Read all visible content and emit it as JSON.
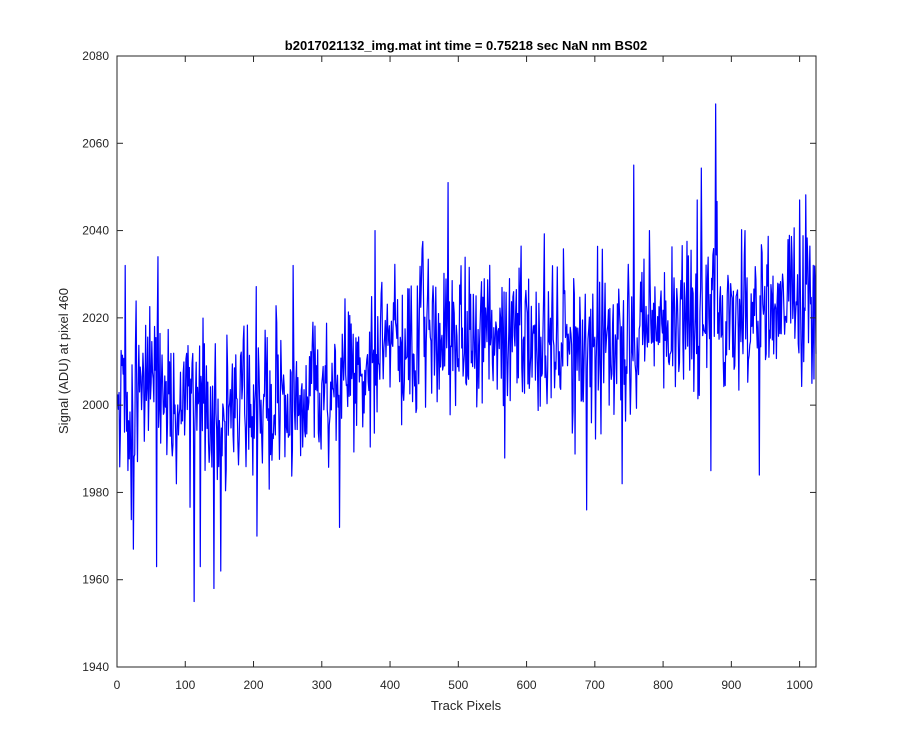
{
  "chart_data": {
    "type": "line",
    "title": "b2017021132_img.mat int time = 0.75218 sec  NaN nm BS02",
    "xlabel": "Track Pixels",
    "ylabel": "Signal (ADU) at pixel 460",
    "xlim": [
      0,
      1024
    ],
    "ylim": [
      1940,
      2080
    ],
    "xticks": [
      0,
      100,
      200,
      300,
      400,
      500,
      600,
      700,
      800,
      900,
      1000
    ],
    "yticks": [
      1940,
      1960,
      1980,
      2000,
      2020,
      2040,
      2060,
      2080
    ],
    "grid": false,
    "series_color": "#0000ff",
    "series": [
      {
        "x_start": 1,
        "x_step": 1,
        "trend": [
          [
            1,
            2005
          ],
          [
            100,
            2002
          ],
          [
            150,
            1998
          ],
          [
            250,
            2000
          ],
          [
            350,
            2008
          ],
          [
            450,
            2018
          ],
          [
            550,
            2017
          ],
          [
            650,
            2013
          ],
          [
            750,
            2017
          ],
          [
            850,
            2020
          ],
          [
            1024,
            2024
          ]
        ],
        "noise_sd": 9,
        "notable_points": [
          [
            5,
            1994
          ],
          [
            12,
            2032
          ],
          [
            24,
            1967
          ],
          [
            58,
            1963
          ],
          [
            60,
            2034
          ],
          [
            113,
            1955
          ],
          [
            122,
            1963
          ],
          [
            142,
            1958
          ],
          [
            152,
            1962
          ],
          [
            205,
            1970
          ],
          [
            258,
            2032
          ],
          [
            326,
            1972
          ],
          [
            378,
            2040
          ],
          [
            485,
            2051
          ],
          [
            575,
            2029
          ],
          [
            688,
            1976
          ],
          [
            740,
            1982
          ],
          [
            757,
            2055
          ],
          [
            780,
            2040
          ],
          [
            850,
            2047
          ],
          [
            870,
            1985
          ],
          [
            877,
            2069
          ],
          [
            920,
            2040
          ],
          [
            941,
            1984
          ],
          [
            1000,
            2047
          ],
          [
            1018,
            2005
          ]
        ]
      }
    ]
  }
}
